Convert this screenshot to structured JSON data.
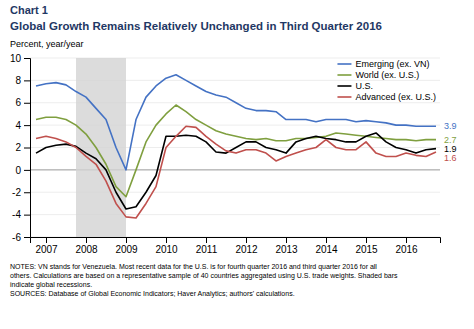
{
  "chart_data": {
    "type": "line",
    "title": "Chart 1",
    "subtitle": "Global Growth Remains Relatively Unchanged in Third Quarter 2016",
    "ylabel": "Percent, year/year",
    "notes": [
      "NOTES: VN stands for Venezuela. Most recent data for the U.S. is for fourth quarter 2016 and third quarter 2016 for all",
      "others. Calculations are based on a representative sample of 40 countries aggregated using U.S. trade weights. Shaded bars",
      "indicate global recessions.",
      "SOURCES: Database of Global Economic Indicators; Haver Analytics; authors' calculations."
    ],
    "x": [
      2006.75,
      2007.0,
      2007.25,
      2007.5,
      2007.75,
      2008.0,
      2008.25,
      2008.5,
      2008.75,
      2009.0,
      2009.25,
      2009.5,
      2009.75,
      2010.0,
      2010.25,
      2010.5,
      2010.75,
      2011.0,
      2011.25,
      2011.5,
      2011.75,
      2012.0,
      2012.25,
      2012.5,
      2012.75,
      2013.0,
      2013.25,
      2013.5,
      2013.75,
      2014.0,
      2014.25,
      2014.5,
      2014.75,
      2015.0,
      2015.25,
      2015.5,
      2015.75,
      2016.0,
      2016.25,
      2016.5,
      2016.75
    ],
    "series": [
      {
        "name": "Emerging (ex. VN)",
        "color": "#4472C4",
        "end_label": "3.9",
        "values": [
          7.5,
          7.7,
          7.8,
          7.6,
          7.0,
          6.5,
          5.5,
          4.5,
          2.0,
          0.0,
          4.5,
          6.5,
          7.5,
          8.2,
          8.5,
          8.0,
          7.5,
          7.0,
          6.7,
          6.5,
          6.0,
          5.5,
          5.3,
          5.3,
          5.2,
          4.5,
          4.5,
          4.5,
          4.3,
          4.5,
          4.5,
          4.5,
          4.3,
          4.4,
          4.3,
          4.2,
          4.0,
          4.0,
          3.9,
          3.9,
          3.9
        ]
      },
      {
        "name": "World (ex. U.S.)",
        "color": "#7F9F3F",
        "end_label": "2.7",
        "values": [
          4.5,
          4.7,
          4.7,
          4.5,
          4.0,
          3.2,
          2.0,
          0.5,
          -1.5,
          -2.4,
          0.0,
          2.5,
          4.0,
          5.0,
          5.8,
          5.2,
          4.5,
          4.0,
          3.5,
          3.2,
          3.0,
          2.8,
          2.7,
          2.8,
          2.6,
          2.6,
          2.8,
          2.8,
          2.9,
          3.0,
          3.3,
          3.2,
          3.1,
          3.0,
          2.9,
          2.8,
          2.7,
          2.7,
          2.6,
          2.7,
          2.7
        ]
      },
      {
        "name": "U.S.",
        "color": "#000000",
        "end_label": "1.9",
        "values": [
          1.5,
          2.0,
          2.2,
          2.3,
          2.1,
          1.5,
          1.0,
          0.0,
          -2.0,
          -3.5,
          -3.3,
          -2.0,
          -0.5,
          3.0,
          3.0,
          3.1,
          3.0,
          2.5,
          1.6,
          1.5,
          2.0,
          2.5,
          2.5,
          2.0,
          1.8,
          1.5,
          2.5,
          2.8,
          3.0,
          2.8,
          2.7,
          2.5,
          2.5,
          3.0,
          3.3,
          2.5,
          2.0,
          1.8,
          1.5,
          1.8,
          1.9
        ]
      },
      {
        "name": "Advanced (ex. U.S.)",
        "color": "#C0504D",
        "end_label": "1.6",
        "values": [
          2.8,
          3.0,
          2.8,
          2.5,
          2.0,
          1.2,
          0.5,
          -1.0,
          -3.0,
          -4.2,
          -4.3,
          -3.0,
          -1.5,
          2.0,
          3.0,
          3.9,
          3.8,
          3.0,
          2.3,
          1.7,
          1.5,
          1.8,
          1.8,
          1.5,
          0.8,
          1.2,
          1.5,
          1.8,
          2.0,
          2.7,
          2.0,
          1.8,
          1.8,
          2.5,
          1.5,
          1.2,
          1.2,
          1.5,
          1.3,
          1.2,
          1.6
        ]
      }
    ],
    "shaded_range": [
      2007.75,
      2009.0
    ],
    "xlim": [
      2006.6,
      2016.85
    ],
    "xticks": [
      2007,
      2008,
      2009,
      2010,
      2011,
      2012,
      2013,
      2014,
      2015,
      2016
    ],
    "ylim": [
      -6,
      10
    ],
    "yticks": [
      -6,
      -4,
      -2,
      0,
      2,
      4,
      6,
      8,
      10
    ],
    "grid": true,
    "legend": "upper right"
  }
}
